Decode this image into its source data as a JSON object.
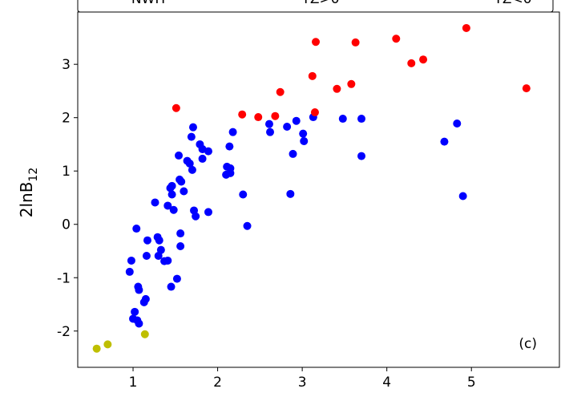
{
  "chart_data": {
    "type": "scatter",
    "ylabel": {
      "text": "2lnB",
      "subscript": "12"
    },
    "annotation": "(c)",
    "xlim": [
      0.346,
      6.04
    ],
    "ylim": [
      -2.68,
      3.98
    ],
    "xticks": [
      1,
      2,
      3,
      4,
      5
    ],
    "yticks": [
      -2,
      -1,
      0,
      1,
      2,
      3
    ],
    "legend": "upper center",
    "series": [
      {
        "name": "NWH",
        "color": "#0000ff",
        "x": [
          0.96,
          0.98,
          1.04,
          1.06,
          1.07,
          1.02,
          1.0,
          1.05,
          1.07,
          1.15,
          1.13,
          1.17,
          1.16,
          1.26,
          1.29,
          1.31,
          1.33,
          1.3,
          1.37,
          1.41,
          1.44,
          1.46,
          1.46,
          1.41,
          1.48,
          1.45,
          1.52,
          1.56,
          1.56,
          1.54,
          1.55,
          1.57,
          1.6,
          1.64,
          1.67,
          1.7,
          1.71,
          1.69,
          1.72,
          1.74,
          1.79,
          1.82,
          1.82,
          1.89,
          1.89,
          2.1,
          2.11,
          2.15,
          2.15,
          2.14,
          2.18,
          2.3,
          2.35,
          2.61,
          2.62,
          2.82,
          2.86,
          2.89,
          2.93,
          3.01,
          3.02,
          3.13,
          3.48,
          3.7,
          3.7,
          4.68,
          4.83,
          4.9
        ],
        "y": [
          -0.89,
          -0.68,
          -0.08,
          -1.17,
          -1.23,
          -1.64,
          -1.77,
          -1.8,
          -1.86,
          -1.4,
          -1.46,
          -0.3,
          -0.59,
          0.41,
          -0.24,
          -0.3,
          -0.48,
          -0.59,
          -0.69,
          -0.68,
          0.68,
          0.72,
          0.56,
          0.35,
          0.27,
          -1.17,
          -1.02,
          -0.17,
          -0.41,
          1.29,
          0.84,
          0.8,
          0.62,
          1.19,
          1.14,
          1.02,
          1.82,
          1.64,
          0.26,
          0.15,
          1.5,
          1.41,
          1.23,
          0.23,
          1.37,
          0.93,
          1.08,
          1.05,
          0.96,
          1.46,
          1.73,
          0.56,
          -0.03,
          1.88,
          1.73,
          1.83,
          0.57,
          1.32,
          1.94,
          1.7,
          1.56,
          2.01,
          1.98,
          1.98,
          1.28,
          1.55,
          1.89,
          0.53
        ]
      },
      {
        "name": "TZ>0",
        "color": "#ff0000",
        "x": [
          1.51,
          2.29,
          2.48,
          2.68,
          2.74,
          3.12,
          3.16,
          3.15,
          3.41,
          3.58,
          3.63,
          4.11,
          4.29,
          4.43,
          4.94,
          5.65
        ],
        "y": [
          2.18,
          2.06,
          2.01,
          2.03,
          2.48,
          2.78,
          3.42,
          2.1,
          2.54,
          2.63,
          3.41,
          3.48,
          3.02,
          3.09,
          3.68,
          2.55
        ]
      },
      {
        "name": "TZ<0",
        "color": "#bfbf00",
        "x": [
          0.57,
          0.7,
          1.14
        ],
        "y": [
          -2.33,
          -2.25,
          -2.06
        ]
      }
    ]
  }
}
